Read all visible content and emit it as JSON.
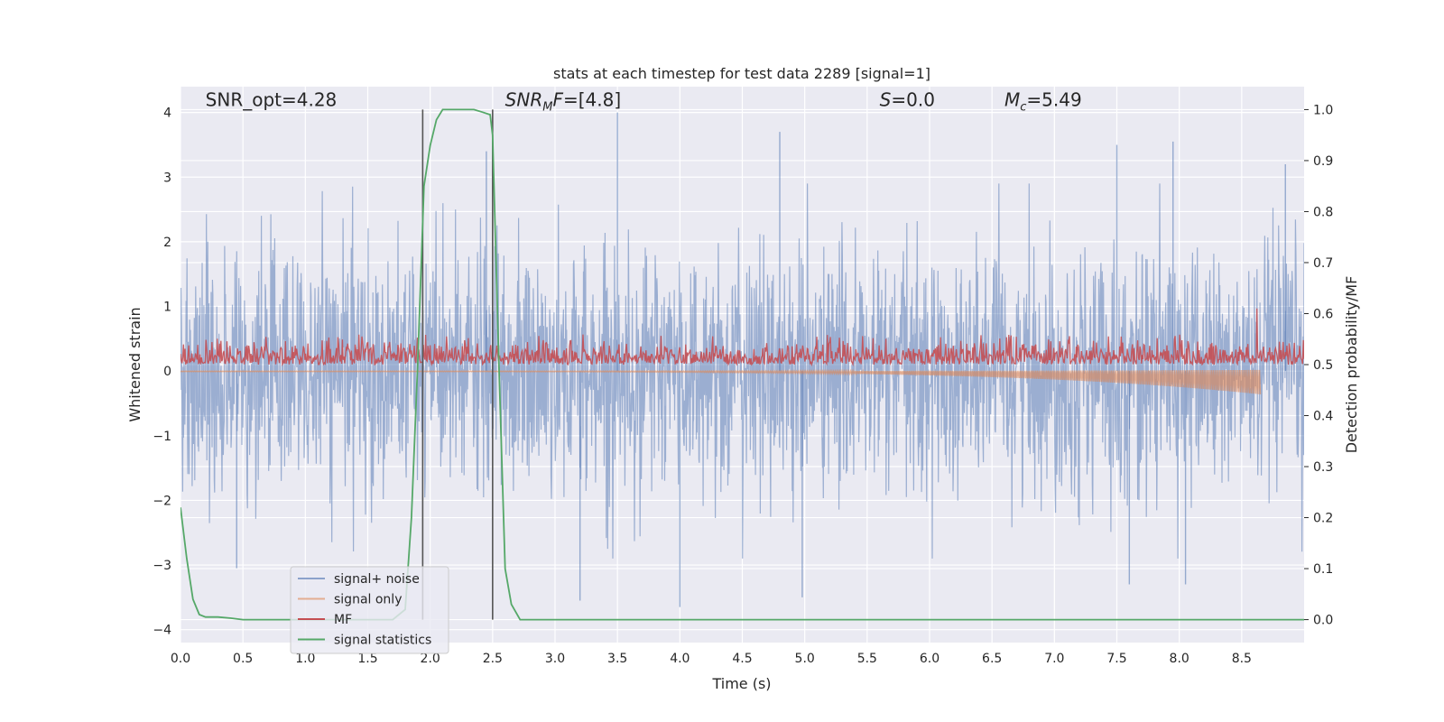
{
  "chart_data": {
    "type": "line",
    "title": "stats at each timestep for test data 2289 [signal=1]",
    "xlabel": "Time (s)",
    "ylabel": "Whitened strain",
    "y2label": "Detection probability/MF",
    "xlim": [
      0,
      9.0
    ],
    "ylim": [
      -4.2,
      4.4
    ],
    "y2lim": [
      -0.045,
      1.045
    ],
    "x_ticks": [
      0.0,
      0.5,
      1.0,
      1.5,
      2.0,
      2.5,
      3.0,
      3.5,
      4.0,
      4.5,
      5.0,
      5.5,
      6.0,
      6.5,
      7.0,
      7.5,
      8.0,
      8.5
    ],
    "x_tick_labels": [
      "0.0",
      "0.5",
      "1.0",
      "1.5",
      "2.0",
      "2.5",
      "3.0",
      "3.5",
      "4.0",
      "4.5",
      "5.0",
      "5.5",
      "6.0",
      "6.5",
      "7.0",
      "7.5",
      "8.0",
      "8.5"
    ],
    "y_ticks": [
      -4,
      -3,
      -2,
      -1,
      0,
      1,
      2,
      3,
      4
    ],
    "y_tick_labels": [
      "−4",
      "−3",
      "−2",
      "−1",
      "0",
      "1",
      "2",
      "3",
      "4"
    ],
    "y2_ticks": [
      0.0,
      0.1,
      0.2,
      0.3,
      0.4,
      0.5,
      0.6,
      0.7,
      0.8,
      0.9,
      1.0
    ],
    "y2_tick_labels": [
      "0.0",
      "0.1",
      "0.2",
      "0.3",
      "0.4",
      "0.5",
      "0.6",
      "0.7",
      "0.8",
      "0.9",
      "1.0"
    ],
    "grid": true,
    "legend_position": "lower-left",
    "colors": {
      "background": "#eaeaf2",
      "grid": "#ffffff",
      "signal_noise": "#4c72b0",
      "signal_only": "#dd8452",
      "mf": "#c44e52",
      "signal_statistics": "#55a868",
      "vline": "#555555"
    },
    "annotations": [
      {
        "text": "SNR_opt=4.28",
        "x": 0.2,
        "y": 4.1
      },
      {
        "text": "SNR_MF=[4.8]",
        "x": 2.6,
        "y": 4.1
      },
      {
        "text": "S=0.0",
        "x": 5.6,
        "y": 4.1
      },
      {
        "text": "M_c=5.49",
        "x": 6.6,
        "y": 4.1
      }
    ],
    "vlines": [
      1.94,
      2.5
    ],
    "series": [
      {
        "name": "signal+ noise",
        "axis": "left",
        "style": "noise",
        "x_range": [
          0,
          9.0
        ],
        "envelope_typical": 1.5,
        "peaks": [
          {
            "x": 3.5,
            "y": 4.0
          },
          {
            "x": 4.8,
            "y": 3.7
          },
          {
            "x": 7.5,
            "y": 3.5
          },
          {
            "x": 7.95,
            "y": 3.55
          },
          {
            "x": 2.45,
            "y": 3.4
          },
          {
            "x": 8.85,
            "y": 3.2
          },
          {
            "x": 4.0,
            "y": -3.65
          },
          {
            "x": 4.98,
            "y": -3.5
          },
          {
            "x": 3.2,
            "y": -3.55
          },
          {
            "x": 7.6,
            "y": -3.3
          },
          {
            "x": 8.05,
            "y": -3.3
          },
          {
            "x": 0.45,
            "y": -3.05
          }
        ]
      },
      {
        "name": "signal only",
        "axis": "left",
        "style": "chirp",
        "x_range": [
          0,
          8.65
        ],
        "amplitude_end": -0.35
      },
      {
        "name": "MF",
        "axis": "right",
        "style": "mf",
        "x_range": [
          0,
          9.0
        ],
        "baseline": 0.5,
        "typical_max": 0.56,
        "peak": {
          "x": 8.62,
          "y": 0.61
        }
      },
      {
        "name": "signal statistics",
        "axis": "right",
        "style": "line",
        "x": [
          0.0,
          0.05,
          0.1,
          0.15,
          0.2,
          0.3,
          0.4,
          0.5,
          1.0,
          1.5,
          1.7,
          1.8,
          1.85,
          1.9,
          1.95,
          2.0,
          2.05,
          2.1,
          2.15,
          2.25,
          2.35,
          2.42,
          2.48,
          2.5,
          2.55,
          2.6,
          2.65,
          2.72,
          2.8,
          9.0
        ],
        "y": [
          0.22,
          0.12,
          0.04,
          0.01,
          0.005,
          0.005,
          0.003,
          0.0,
          0.0,
          0.0,
          0.0,
          0.02,
          0.2,
          0.5,
          0.85,
          0.93,
          0.98,
          1.0,
          1.0,
          1.0,
          1.0,
          0.995,
          0.99,
          0.95,
          0.5,
          0.1,
          0.03,
          0.0,
          0.0,
          0.0
        ]
      }
    ]
  }
}
